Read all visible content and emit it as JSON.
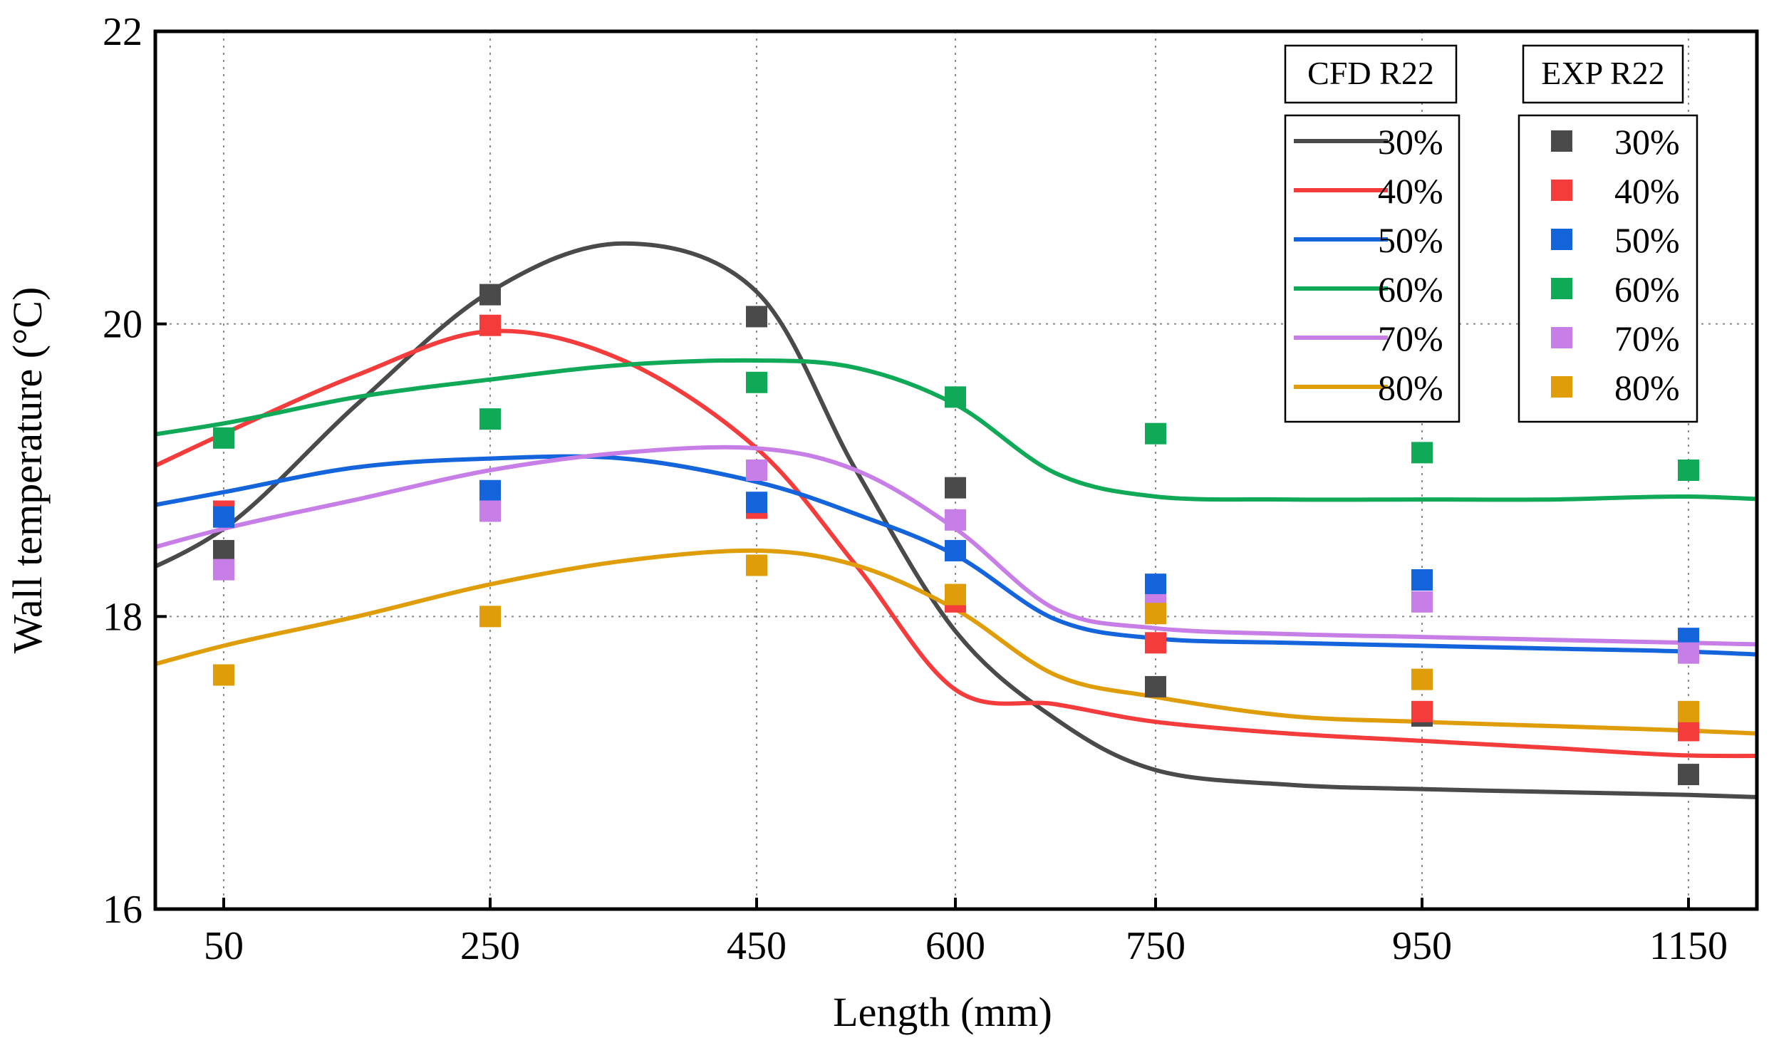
{
  "chart_data": {
    "type": "line",
    "xlabel": "Length (mm)",
    "ylabel": "Wall temperature (°C)",
    "ylim": [
      16,
      22
    ],
    "yticks": [
      16,
      18,
      20,
      22
    ],
    "ytick_labels": [
      "16",
      "18",
      "20",
      "22"
    ],
    "categories": [
      "50",
      "250",
      "450",
      "600",
      "750",
      "950",
      "1150"
    ],
    "grid": true,
    "legend_cfd_title": "CFD R22",
    "legend_exp_title": "EXP R22",
    "legend_placement": "top-right",
    "cfd_series": [
      {
        "name": "30%",
        "color": "#4a4a4a",
        "x": [
          -0.5,
          0,
          0.5,
          1,
          1.5,
          2,
          2.5,
          3,
          3.5,
          4,
          4.5,
          5,
          5.5,
          6,
          6.5
        ],
        "y": [
          18.15,
          18.6,
          19.45,
          20.22,
          20.55,
          20.22,
          19.0,
          17.9,
          17.3,
          16.95,
          16.85,
          16.82,
          16.8,
          16.78,
          16.75
        ]
      },
      {
        "name": "40%",
        "color": "#f53c3c",
        "x": [
          -0.5,
          0,
          0.5,
          1,
          1.5,
          2,
          2.5,
          3,
          3.5,
          4,
          4.5,
          5,
          5.5,
          6,
          6.5
        ],
        "y": [
          18.82,
          19.25,
          19.65,
          19.95,
          19.75,
          19.15,
          18.35,
          17.5,
          17.4,
          17.28,
          17.2,
          17.15,
          17.1,
          17.05,
          17.05
        ]
      },
      {
        "name": "50%",
        "color": "#1464dc",
        "x": [
          -0.5,
          0,
          0.5,
          1,
          1.5,
          2,
          2.5,
          3,
          3.5,
          4,
          4.5,
          5,
          5.5,
          6,
          6.5
        ],
        "y": [
          18.68,
          18.85,
          19.02,
          19.08,
          19.08,
          18.92,
          18.7,
          18.42,
          17.98,
          17.85,
          17.82,
          17.8,
          17.78,
          17.76,
          17.72
        ]
      },
      {
        "name": "60%",
        "color": "#0fa958",
        "x": [
          -0.5,
          0,
          0.5,
          1,
          1.5,
          2,
          2.5,
          3,
          3.5,
          4,
          4.5,
          5,
          5.5,
          6,
          6.5
        ],
        "y": [
          19.18,
          19.32,
          19.5,
          19.62,
          19.72,
          19.75,
          19.7,
          19.45,
          18.98,
          18.82,
          18.8,
          18.8,
          18.8,
          18.82,
          18.78
        ]
      },
      {
        "name": "70%",
        "color": "#c77ee6",
        "x": [
          -0.5,
          0,
          0.5,
          1,
          1.5,
          2,
          2.5,
          3,
          3.5,
          4,
          4.5,
          5,
          5.5,
          6,
          6.5
        ],
        "y": [
          18.35,
          18.6,
          18.8,
          19.0,
          19.12,
          19.15,
          19.0,
          18.6,
          18.05,
          17.92,
          17.88,
          17.86,
          17.84,
          17.82,
          17.8
        ]
      },
      {
        "name": "80%",
        "color": "#e09d0a",
        "x": [
          -0.5,
          0,
          0.5,
          1,
          1.5,
          2,
          2.5,
          3,
          3.5,
          4,
          4.5,
          5,
          5.5,
          6,
          6.5
        ],
        "y": [
          17.55,
          17.8,
          18.0,
          18.22,
          18.38,
          18.45,
          18.35,
          18.05,
          17.6,
          17.45,
          17.32,
          17.28,
          17.25,
          17.22,
          17.18
        ]
      }
    ],
    "exp_series": [
      {
        "name": "30%",
        "color": "#4a4a4a",
        "values": [
          18.45,
          20.2,
          20.05,
          18.88,
          17.52,
          17.32,
          16.92
        ]
      },
      {
        "name": "40%",
        "color": "#f53c3c",
        "values": [
          18.72,
          19.99,
          18.74,
          18.1,
          17.82,
          17.35,
          17.22
        ]
      },
      {
        "name": "50%",
        "color": "#1464dc",
        "values": [
          18.68,
          18.86,
          18.78,
          18.45,
          18.22,
          18.25,
          17.85
        ]
      },
      {
        "name": "60%",
        "color": "#0fa958",
        "values": [
          19.22,
          19.35,
          19.6,
          19.5,
          19.25,
          19.12,
          19.0
        ]
      },
      {
        "name": "70%",
        "color": "#c77ee6",
        "values": [
          18.32,
          18.72,
          19.0,
          18.66,
          18.08,
          18.1,
          17.75
        ]
      },
      {
        "name": "80%",
        "color": "#e09d0a",
        "values": [
          17.6,
          18.0,
          18.35,
          18.15,
          18.02,
          17.57,
          17.35
        ]
      }
    ]
  }
}
